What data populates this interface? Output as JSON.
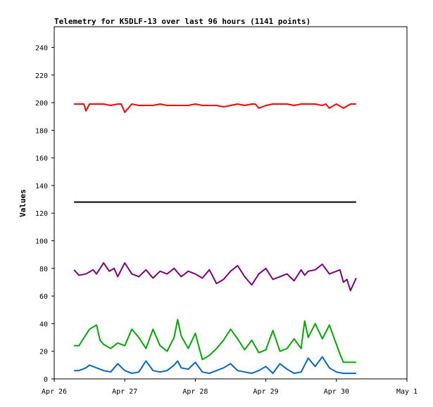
{
  "chart_data": {
    "type": "line",
    "title": "Telemetry for K5DLF-13 over last 96 hours (1141 points)",
    "xlabel": "",
    "ylabel": "Values",
    "ylim": [
      0,
      255
    ],
    "y_ticks": [
      0,
      20,
      40,
      60,
      80,
      100,
      120,
      140,
      160,
      180,
      200,
      220,
      240
    ],
    "x_ticks": [
      "Apr 26",
      "Apr 27",
      "Apr 28",
      "Apr 29",
      "Apr 30",
      "May 1"
    ],
    "x_range_days": [
      0,
      5
    ],
    "grid": false,
    "legend": "none",
    "series": [
      {
        "color": "#ff0000",
        "x": [
          0.28,
          0.35,
          0.42,
          0.45,
          0.5,
          0.6,
          0.7,
          0.8,
          0.9,
          0.95,
          1.0,
          1.1,
          1.2,
          1.3,
          1.4,
          1.5,
          1.6,
          1.7,
          1.8,
          1.9,
          2.0,
          2.1,
          2.2,
          2.3,
          2.4,
          2.5,
          2.6,
          2.7,
          2.8,
          2.85,
          2.9,
          3.0,
          3.1,
          3.2,
          3.3,
          3.4,
          3.5,
          3.6,
          3.7,
          3.8,
          3.85,
          3.9,
          4.0,
          4.1,
          4.2,
          4.28
        ],
        "values": [
          199,
          199,
          199,
          194,
          199,
          199,
          199,
          198,
          199,
          199,
          193,
          199,
          198,
          198,
          198,
          199,
          198,
          198,
          198,
          198,
          199,
          198,
          198,
          198,
          197,
          198,
          199,
          198,
          199,
          199,
          196,
          198,
          199,
          199,
          199,
          198,
          199,
          199,
          199,
          198,
          199,
          196,
          199,
          196,
          199,
          199
        ]
      },
      {
        "color": "#000000",
        "x": [
          0.28,
          4.28
        ],
        "values": [
          128,
          128
        ]
      },
      {
        "color": "#7f007f",
        "x": [
          0.28,
          0.35,
          0.45,
          0.55,
          0.6,
          0.7,
          0.78,
          0.85,
          0.9,
          0.95,
          1.0,
          1.05,
          1.1,
          1.2,
          1.3,
          1.4,
          1.5,
          1.6,
          1.7,
          1.8,
          1.9,
          2.0,
          2.1,
          2.2,
          2.3,
          2.4,
          2.5,
          2.6,
          2.7,
          2.8,
          2.9,
          3.0,
          3.1,
          3.2,
          3.3,
          3.4,
          3.5,
          3.55,
          3.6,
          3.7,
          3.8,
          3.9,
          4.0,
          4.05,
          4.1,
          4.15,
          4.2,
          4.28
        ],
        "values": [
          79,
          75,
          76,
          79,
          76,
          84,
          78,
          80,
          74,
          79,
          84,
          80,
          76,
          74,
          79,
          73,
          78,
          76,
          80,
          74,
          78,
          76,
          73,
          79,
          69,
          72,
          78,
          82,
          74,
          68,
          76,
          80,
          72,
          74,
          76,
          71,
          79,
          75,
          78,
          79,
          83,
          76,
          78,
          79,
          70,
          72,
          64,
          73
        ]
      },
      {
        "color": "#00aa00",
        "x": [
          0.28,
          0.35,
          0.4,
          0.5,
          0.6,
          0.65,
          0.7,
          0.8,
          0.9,
          1.0,
          1.1,
          1.2,
          1.3,
          1.4,
          1.5,
          1.6,
          1.7,
          1.75,
          1.8,
          1.9,
          2.0,
          2.1,
          2.2,
          2.3,
          2.4,
          2.5,
          2.6,
          2.7,
          2.8,
          2.9,
          3.0,
          3.1,
          3.2,
          3.3,
          3.4,
          3.5,
          3.55,
          3.6,
          3.7,
          3.8,
          3.9,
          4.0,
          4.05,
          4.1,
          4.15,
          4.28
        ],
        "values": [
          24,
          24,
          28,
          36,
          39,
          28,
          25,
          22,
          26,
          24,
          36,
          30,
          22,
          36,
          24,
          20,
          30,
          43,
          31,
          22,
          33,
          14,
          17,
          22,
          28,
          36,
          29,
          21,
          28,
          19,
          21,
          35,
          20,
          22,
          29,
          22,
          42,
          30,
          40,
          29,
          39,
          25,
          18,
          12,
          12,
          12
        ]
      },
      {
        "color": "#0066cc",
        "x": [
          0.28,
          0.35,
          0.45,
          0.5,
          0.6,
          0.7,
          0.8,
          0.9,
          1.0,
          1.1,
          1.2,
          1.3,
          1.4,
          1.5,
          1.6,
          1.7,
          1.75,
          1.8,
          1.9,
          2.0,
          2.1,
          2.2,
          2.3,
          2.4,
          2.5,
          2.6,
          2.7,
          2.8,
          2.9,
          3.0,
          3.1,
          3.2,
          3.3,
          3.4,
          3.5,
          3.55,
          3.6,
          3.7,
          3.8,
          3.9,
          4.0,
          4.1,
          4.28
        ],
        "values": [
          6,
          6,
          8,
          10,
          8,
          6,
          5,
          11,
          6,
          4,
          5,
          13,
          6,
          5,
          6,
          10,
          13,
          8,
          7,
          12,
          5,
          4,
          6,
          8,
          11,
          6,
          5,
          4,
          6,
          9,
          4,
          11,
          7,
          4,
          5,
          10,
          15,
          9,
          16,
          8,
          5,
          4,
          4
        ]
      }
    ]
  }
}
